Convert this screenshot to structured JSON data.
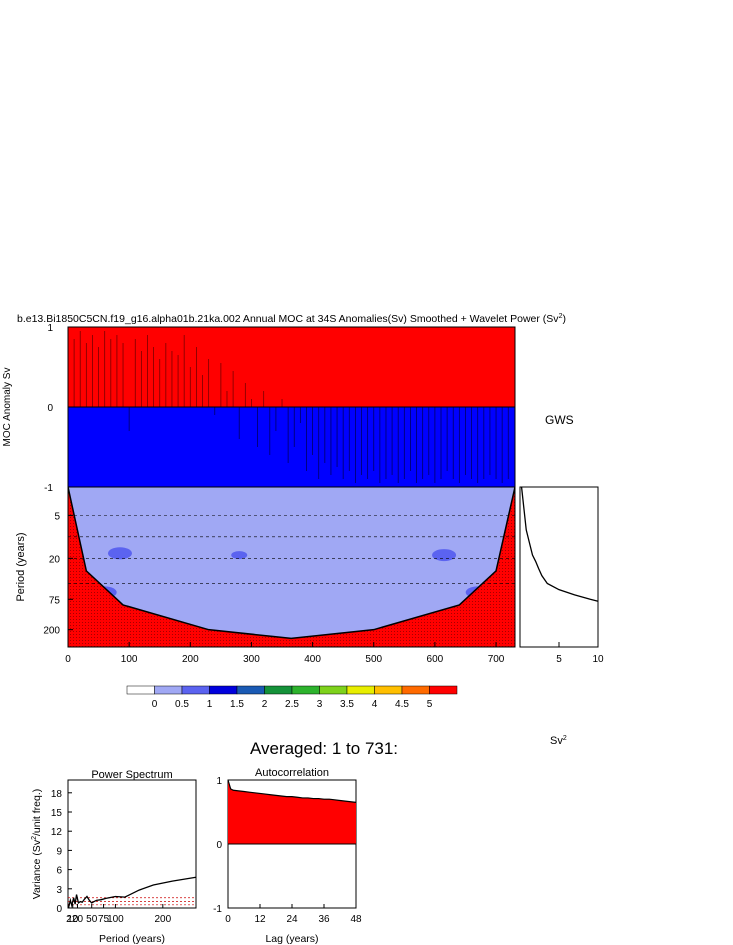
{
  "figure": {
    "title_prefix": "b.e13.Bi1850C5CN.f19_g16.alpha01b.21ka.002 Annual MOC at 34S Anomalies(Sv) Smoothed + Wavelet Power (Sv",
    "title_sup": "2",
    "title_suffix": ")",
    "averaged_title": "Averaged: 1 to 731:",
    "gws_label": "GWS",
    "sv2_label": "Sv",
    "sv2_sup": "2"
  },
  "colors": {
    "positive": "#ff0000",
    "negative": "#0000ff",
    "coi_fill": "#ff0000",
    "contour_palette": [
      "#ffffff",
      "#a0a8f4",
      "#5b63f0",
      "#0000dd",
      "#1a5ab4",
      "#15923a",
      "#2db32d",
      "#7ed21c",
      "#e8ee00",
      "#ffbf00",
      "#ff6a00",
      "#ff0000"
    ]
  },
  "chart_data": [
    {
      "type": "area",
      "id": "moc_anomaly",
      "ylabel": "MOC Anomaly Sv",
      "xlim": [
        0,
        731
      ],
      "ylim": [
        -1,
        1
      ],
      "yticks": [
        "1",
        "0",
        "-1"
      ],
      "ytick_values": [
        1,
        0,
        -1
      ],
      "x": [
        0,
        10,
        20,
        30,
        40,
        50,
        60,
        70,
        80,
        90,
        100,
        110,
        120,
        130,
        140,
        150,
        160,
        170,
        180,
        190,
        200,
        210,
        220,
        230,
        240,
        250,
        260,
        270,
        280,
        290,
        300,
        310,
        320,
        330,
        340,
        350,
        360,
        370,
        380,
        390,
        400,
        410,
        420,
        430,
        440,
        450,
        460,
        470,
        480,
        490,
        500,
        510,
        520,
        530,
        540,
        550,
        560,
        570,
        580,
        590,
        600,
        610,
        620,
        630,
        640,
        650,
        660,
        670,
        680,
        690,
        700,
        710,
        720,
        731
      ],
      "values": [
        0.9,
        0.85,
        0.95,
        0.8,
        0.9,
        0.75,
        0.95,
        0.85,
        0.9,
        0.8,
        -0.3,
        0.85,
        0.7,
        0.9,
        0.75,
        0.6,
        0.8,
        0.7,
        0.65,
        0.9,
        0.5,
        0.75,
        0.4,
        0.6,
        -0.1,
        0.55,
        0.2,
        0.45,
        -0.4,
        0.3,
        0.1,
        -0.5,
        0.2,
        -0.6,
        -0.3,
        0.1,
        -0.7,
        -0.5,
        -0.2,
        -0.8,
        -0.6,
        -0.9,
        -0.7,
        -0.85,
        -0.75,
        -0.9,
        -0.8,
        -0.95,
        -0.85,
        -0.9,
        -0.8,
        -0.95,
        -0.9,
        -0.85,
        -0.95,
        -0.9,
        -0.8,
        -0.95,
        -0.9,
        -0.85,
        -0.95,
        -0.9,
        -0.8,
        -0.9,
        -0.95,
        -0.85,
        -0.9,
        -0.95,
        -0.9,
        -0.85,
        -0.9,
        -0.95,
        -0.9,
        -0.85
      ]
    },
    {
      "type": "heatmap",
      "id": "wavelet_power",
      "ylabel": "Period (years)",
      "xlim": [
        0,
        731
      ],
      "xticks": [
        "0",
        "100",
        "200",
        "300",
        "400",
        "500",
        "600",
        "700"
      ],
      "xtick_values": [
        0,
        100,
        200,
        300,
        400,
        500,
        600,
        700
      ],
      "yticks": [
        "5",
        "20",
        "75",
        "200"
      ],
      "ytick_values": [
        5,
        20,
        75,
        200
      ],
      "yscale": "log",
      "ylim": [
        2,
        350
      ],
      "coi_periods": [
        2,
        30,
        90,
        200,
        265,
        200,
        90,
        30,
        2
      ],
      "coi_x": [
        0,
        30,
        90,
        230,
        365,
        500,
        640,
        700,
        731
      ],
      "dashed_periods": [
        5,
        10,
        20,
        45
      ],
      "hotspots": [
        {
          "x": 85,
          "period": 17,
          "level": 3
        },
        {
          "x": 280,
          "period": 18,
          "level": 2
        },
        {
          "x": 615,
          "period": 18,
          "level": 3
        },
        {
          "x": 60,
          "period": 60,
          "level": 3
        },
        {
          "x": 670,
          "period": 60,
          "level": 3
        }
      ]
    },
    {
      "type": "line",
      "id": "global_wavelet_spectrum",
      "xlabel": "",
      "xticks": [
        "5",
        "10"
      ],
      "xtick_values": [
        5,
        10
      ],
      "xlim": [
        0,
        10
      ],
      "x": [
        0.2,
        0.5,
        0.8,
        1.2,
        1.6,
        2.0,
        2.4,
        2.8,
        3.5,
        5.0,
        7.0,
        9.0,
        10
      ],
      "periods": [
        2,
        4,
        8,
        12,
        18,
        22,
        28,
        35,
        45,
        55,
        65,
        75,
        80
      ]
    },
    {
      "type": "bar",
      "id": "colorbar",
      "tick_labels": [
        "0",
        "0.5",
        "1",
        "1.5",
        "2",
        "2.5",
        "3",
        "3.5",
        "4",
        "4.5",
        "5"
      ],
      "levels": [
        0,
        0.5,
        1,
        1.5,
        2,
        2.5,
        3,
        3.5,
        4,
        4.5,
        5
      ]
    },
    {
      "type": "line",
      "id": "power_spectrum",
      "title": "Power Spectrum",
      "ylabel": "Variance (Sv",
      "ylabel_sup": "2",
      "ylabel_suffix": "/unit freq.)",
      "xlabel": "Period (years)",
      "xlim": [
        0,
        270
      ],
      "ylim": [
        0,
        20
      ],
      "xticks": [
        "2",
        "10",
        "20",
        "50",
        "75",
        "100",
        "200"
      ],
      "xtick_values": [
        2,
        10,
        20,
        50,
        75,
        100,
        200
      ],
      "yticks": [
        "0",
        "3",
        "6",
        "9",
        "12",
        "15",
        "18"
      ],
      "ytick_values": [
        0,
        3,
        6,
        9,
        12,
        15,
        18
      ],
      "x": [
        2,
        5,
        8,
        12,
        15,
        18,
        22,
        26,
        30,
        35,
        40,
        45,
        50,
        55,
        60,
        70,
        80,
        100,
        120,
        150,
        180,
        220,
        270
      ],
      "values": [
        0.3,
        1.2,
        0.4,
        1.6,
        0.6,
        2.1,
        0.8,
        1.0,
        0.9,
        1.4,
        1.8,
        1.2,
        0.8,
        1.0,
        1.2,
        1.3,
        1.5,
        1.8,
        1.7,
        2.8,
        3.6,
        4.2,
        4.8
      ],
      "confidence_levels": [
        0.5,
        1.0,
        1.6
      ]
    },
    {
      "type": "area",
      "id": "autocorrelation",
      "title": "Autocorrelation",
      "xlabel": "Lag (years)",
      "xlim": [
        0,
        48
      ],
      "ylim": [
        -1,
        1
      ],
      "xticks": [
        "0",
        "12",
        "24",
        "36",
        "48"
      ],
      "xtick_values": [
        0,
        12,
        24,
        36,
        48
      ],
      "yticks": [
        "1",
        "0",
        "-1"
      ],
      "ytick_values": [
        1,
        0,
        -1
      ],
      "x": [
        0,
        1,
        2,
        4,
        6,
        8,
        10,
        12,
        14,
        16,
        18,
        20,
        22,
        24,
        26,
        28,
        30,
        32,
        34,
        36,
        38,
        40,
        42,
        44,
        46,
        48
      ],
      "values": [
        1.0,
        0.86,
        0.84,
        0.83,
        0.82,
        0.81,
        0.8,
        0.79,
        0.78,
        0.77,
        0.76,
        0.75,
        0.74,
        0.74,
        0.73,
        0.72,
        0.72,
        0.71,
        0.71,
        0.7,
        0.7,
        0.69,
        0.68,
        0.67,
        0.66,
        0.65
      ]
    }
  ]
}
